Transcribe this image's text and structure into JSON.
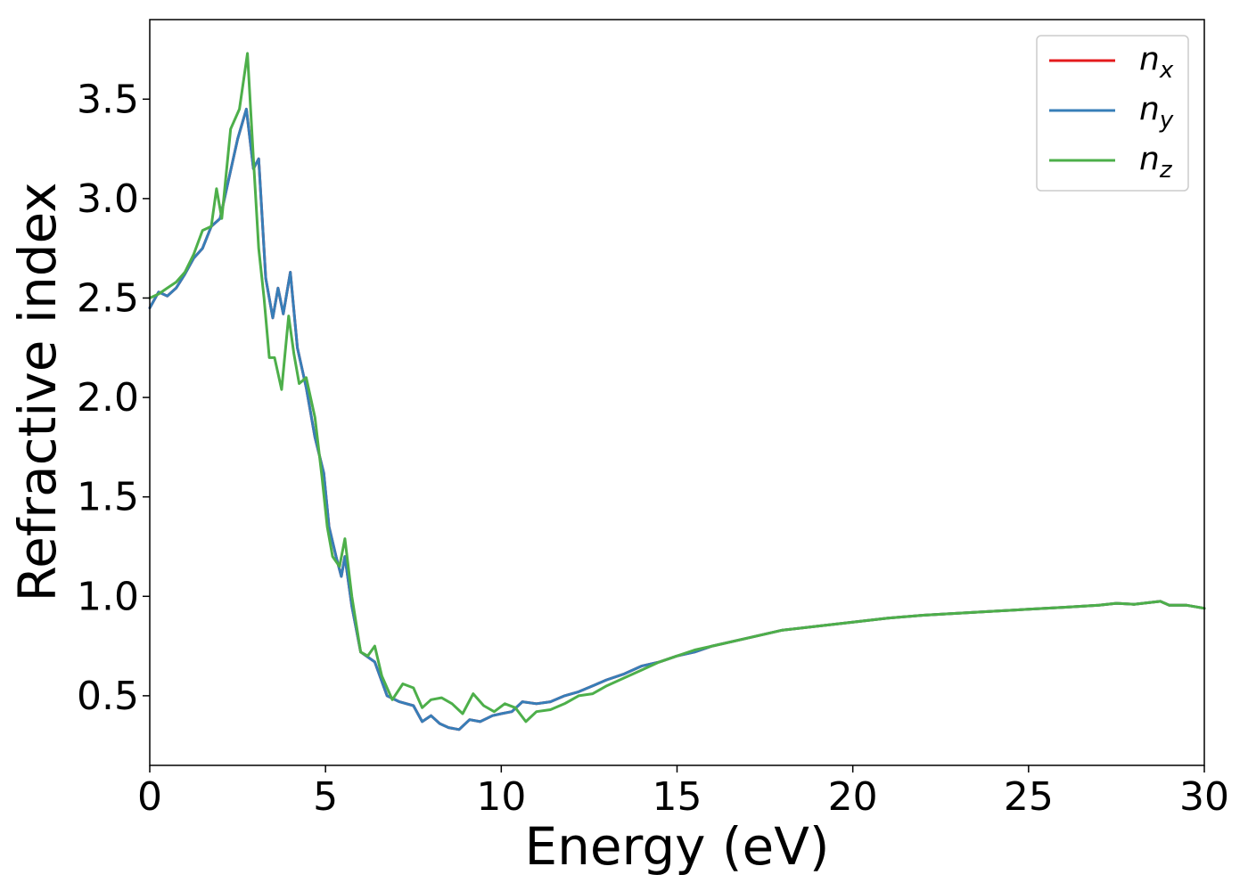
{
  "chart_data": {
    "type": "line",
    "title": "",
    "xlabel": "Energy (eV)",
    "ylabel": "Refractive index",
    "xlim": [
      0,
      30
    ],
    "ylim": [
      0.15,
      3.9
    ],
    "xticks": [
      0,
      5,
      10,
      15,
      20,
      25,
      30
    ],
    "xtick_labels": [
      "0",
      "5",
      "10",
      "15",
      "20",
      "25",
      "30"
    ],
    "yticks": [
      0.5,
      1.0,
      1.5,
      2.0,
      2.5,
      3.0,
      3.5
    ],
    "ytick_labels": [
      "0.5",
      "1.0",
      "1.5",
      "2.0",
      "2.5",
      "3.0",
      "3.5"
    ],
    "grid": false,
    "legend_position": "top-right",
    "series": [
      {
        "name": "n_x",
        "label_base": "n",
        "label_sub": "x",
        "color": "#e41a1c",
        "x": [
          0,
          0.25,
          0.5,
          0.75,
          1.0,
          1.25,
          1.5,
          1.75,
          2.0,
          2.25,
          2.5,
          2.75,
          2.95,
          3.1,
          3.3,
          3.5,
          3.65,
          3.8,
          4.0,
          4.2,
          4.45,
          4.7,
          4.95,
          5.1,
          5.3,
          5.45,
          5.55,
          5.75,
          6.0,
          6.4,
          6.75,
          7.1,
          7.5,
          7.75,
          8.0,
          8.25,
          8.5,
          8.8,
          9.1,
          9.4,
          9.75,
          10.0,
          10.3,
          10.6,
          11.0,
          11.4,
          11.8,
          12.2,
          12.6,
          13.0,
          13.5,
          14.0,
          14.5,
          15.0,
          15.5,
          16.0,
          17.0,
          18.0,
          19.0,
          20.0,
          21.0,
          22.0,
          23.0,
          24.0,
          25.0,
          26.0,
          27.0,
          27.5,
          28.0,
          28.5,
          28.75,
          29.0,
          29.5,
          30.0
        ],
        "y": [
          2.45,
          2.53,
          2.51,
          2.55,
          2.62,
          2.7,
          2.75,
          2.86,
          2.9,
          3.1,
          3.3,
          3.45,
          3.15,
          3.2,
          2.6,
          2.4,
          2.55,
          2.42,
          2.63,
          2.25,
          2.05,
          1.8,
          1.62,
          1.35,
          1.2,
          1.1,
          1.2,
          0.95,
          0.72,
          0.67,
          0.5,
          0.47,
          0.45,
          0.37,
          0.4,
          0.36,
          0.34,
          0.33,
          0.38,
          0.37,
          0.4,
          0.41,
          0.42,
          0.47,
          0.46,
          0.47,
          0.5,
          0.52,
          0.55,
          0.58,
          0.61,
          0.65,
          0.67,
          0.7,
          0.72,
          0.75,
          0.79,
          0.83,
          0.85,
          0.87,
          0.89,
          0.905,
          0.915,
          0.925,
          0.935,
          0.945,
          0.955,
          0.965,
          0.96,
          0.97,
          0.975,
          0.955,
          0.955,
          0.94
        ]
      },
      {
        "name": "n_y",
        "label_base": "n",
        "label_sub": "y",
        "color": "#377eb8",
        "x": [
          0,
          0.25,
          0.5,
          0.75,
          1.0,
          1.25,
          1.5,
          1.75,
          2.0,
          2.25,
          2.5,
          2.75,
          2.95,
          3.1,
          3.3,
          3.5,
          3.65,
          3.8,
          4.0,
          4.2,
          4.45,
          4.7,
          4.95,
          5.1,
          5.3,
          5.45,
          5.55,
          5.75,
          6.0,
          6.4,
          6.75,
          7.1,
          7.5,
          7.75,
          8.0,
          8.25,
          8.5,
          8.8,
          9.1,
          9.4,
          9.75,
          10.0,
          10.3,
          10.6,
          11.0,
          11.4,
          11.8,
          12.2,
          12.6,
          13.0,
          13.5,
          14.0,
          14.5,
          15.0,
          15.5,
          16.0,
          17.0,
          18.0,
          19.0,
          20.0,
          21.0,
          22.0,
          23.0,
          24.0,
          25.0,
          26.0,
          27.0,
          27.5,
          28.0,
          28.5,
          28.75,
          29.0,
          29.5,
          30.0
        ],
        "y": [
          2.45,
          2.53,
          2.51,
          2.55,
          2.62,
          2.7,
          2.75,
          2.86,
          2.9,
          3.1,
          3.3,
          3.45,
          3.15,
          3.2,
          2.6,
          2.4,
          2.55,
          2.42,
          2.63,
          2.25,
          2.05,
          1.8,
          1.62,
          1.35,
          1.2,
          1.1,
          1.2,
          0.95,
          0.72,
          0.67,
          0.5,
          0.47,
          0.45,
          0.37,
          0.4,
          0.36,
          0.34,
          0.33,
          0.38,
          0.37,
          0.4,
          0.41,
          0.42,
          0.47,
          0.46,
          0.47,
          0.5,
          0.52,
          0.55,
          0.58,
          0.61,
          0.65,
          0.67,
          0.7,
          0.72,
          0.75,
          0.79,
          0.83,
          0.85,
          0.87,
          0.89,
          0.905,
          0.915,
          0.925,
          0.935,
          0.945,
          0.955,
          0.965,
          0.96,
          0.97,
          0.975,
          0.955,
          0.955,
          0.94
        ]
      },
      {
        "name": "n_z",
        "label_base": "n",
        "label_sub": "z",
        "color": "#4daf4a",
        "x": [
          0,
          0.25,
          0.5,
          0.75,
          1.0,
          1.25,
          1.5,
          1.75,
          1.9,
          2.05,
          2.3,
          2.55,
          2.78,
          2.95,
          3.1,
          3.25,
          3.4,
          3.55,
          3.75,
          3.95,
          4.1,
          4.25,
          4.45,
          4.7,
          4.9,
          5.05,
          5.2,
          5.4,
          5.55,
          5.75,
          6.0,
          6.2,
          6.4,
          6.6,
          6.9,
          7.2,
          7.5,
          7.75,
          8.0,
          8.3,
          8.6,
          8.9,
          9.2,
          9.5,
          9.8,
          10.1,
          10.4,
          10.7,
          11.0,
          11.4,
          11.8,
          12.2,
          12.6,
          13.0,
          13.5,
          14.0,
          14.5,
          15.0,
          15.5,
          16.0,
          17.0,
          18.0,
          19.0,
          20.0,
          21.0,
          22.0,
          23.0,
          24.0,
          25.0,
          26.0,
          27.0,
          27.5,
          28.0,
          28.5,
          28.75,
          29.0,
          29.5,
          30.0
        ],
        "y": [
          2.5,
          2.52,
          2.55,
          2.58,
          2.63,
          2.72,
          2.84,
          2.86,
          3.05,
          2.9,
          3.35,
          3.45,
          3.73,
          3.2,
          2.75,
          2.5,
          2.2,
          2.2,
          2.04,
          2.41,
          2.22,
          2.07,
          2.1,
          1.9,
          1.6,
          1.35,
          1.2,
          1.15,
          1.29,
          1.0,
          0.72,
          0.7,
          0.75,
          0.6,
          0.48,
          0.56,
          0.54,
          0.44,
          0.48,
          0.49,
          0.46,
          0.41,
          0.51,
          0.45,
          0.42,
          0.46,
          0.44,
          0.37,
          0.42,
          0.43,
          0.46,
          0.5,
          0.51,
          0.55,
          0.59,
          0.63,
          0.67,
          0.7,
          0.73,
          0.75,
          0.79,
          0.83,
          0.85,
          0.87,
          0.89,
          0.905,
          0.915,
          0.925,
          0.935,
          0.945,
          0.955,
          0.965,
          0.96,
          0.97,
          0.975,
          0.955,
          0.955,
          0.94
        ]
      }
    ]
  }
}
